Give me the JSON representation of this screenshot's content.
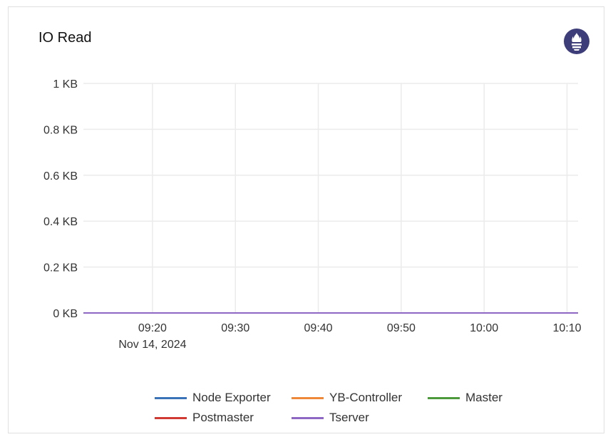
{
  "panel": {
    "title": "IO Read",
    "source_icon": "prometheus-icon",
    "icon_color": "#3d3d7a"
  },
  "chart_data": {
    "type": "line",
    "title": "IO Read",
    "x": [
      "09:11:40",
      "10:11:20"
    ],
    "xlim": [
      "09:11:40",
      "10:11:20"
    ],
    "x_ticks": [
      "09:20",
      "09:30",
      "09:40",
      "09:50",
      "10:00",
      "10:10"
    ],
    "x_date_label": "Nov 14, 2024",
    "y_ticks": [
      "0 KB",
      "0.2 KB",
      "0.4 KB",
      "0.6 KB",
      "0.8 KB",
      "1 KB"
    ],
    "ylim": [
      0,
      1
    ],
    "yunit": "KB",
    "grid": true,
    "legend": "bottom",
    "series": [
      {
        "name": "Node Exporter",
        "color": "#3b73b9",
        "values": [
          0,
          0
        ]
      },
      {
        "name": "YB-Controller",
        "color": "#f0883a",
        "values": [
          0,
          0
        ]
      },
      {
        "name": "Master",
        "color": "#4c9a3c",
        "values": [
          0,
          0
        ]
      },
      {
        "name": "Postmaster",
        "color": "#d03a33",
        "values": [
          0,
          0
        ]
      },
      {
        "name": "Tserver",
        "color": "#8e67c4",
        "values": [
          0,
          0
        ]
      }
    ]
  }
}
